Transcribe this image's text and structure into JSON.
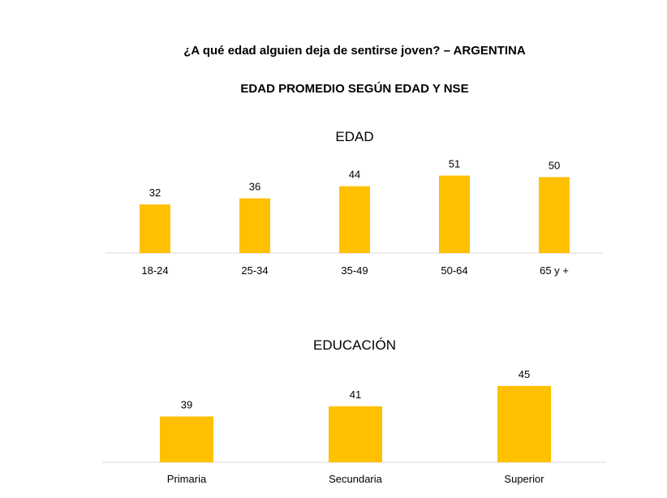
{
  "header": {
    "title": "¿A qué edad alguien deja de sentirse joven? – ARGENTINA",
    "subtitle": "EDAD PROMEDIO SEGÚN EDAD Y NSE"
  },
  "colors": {
    "bar": "#FFC000",
    "axis": "#D9D9D9"
  },
  "chart_data": [
    {
      "type": "bar",
      "title": "EDAD",
      "categories": [
        "18-24",
        "25-34",
        "35-49",
        "50-64",
        "65 y +"
      ],
      "values": [
        32,
        36,
        44,
        51,
        50
      ],
      "xlabel": "",
      "ylabel": "",
      "ylim": [
        0,
        55
      ],
      "grid": false
    },
    {
      "type": "bar",
      "title": "EDUCACIÓN",
      "categories": [
        "Primaria",
        "Secundaria",
        "Superior"
      ],
      "values": [
        39,
        41,
        45
      ],
      "xlabel": "",
      "ylabel": "",
      "ylim": [
        30,
        48
      ],
      "grid": false
    }
  ]
}
